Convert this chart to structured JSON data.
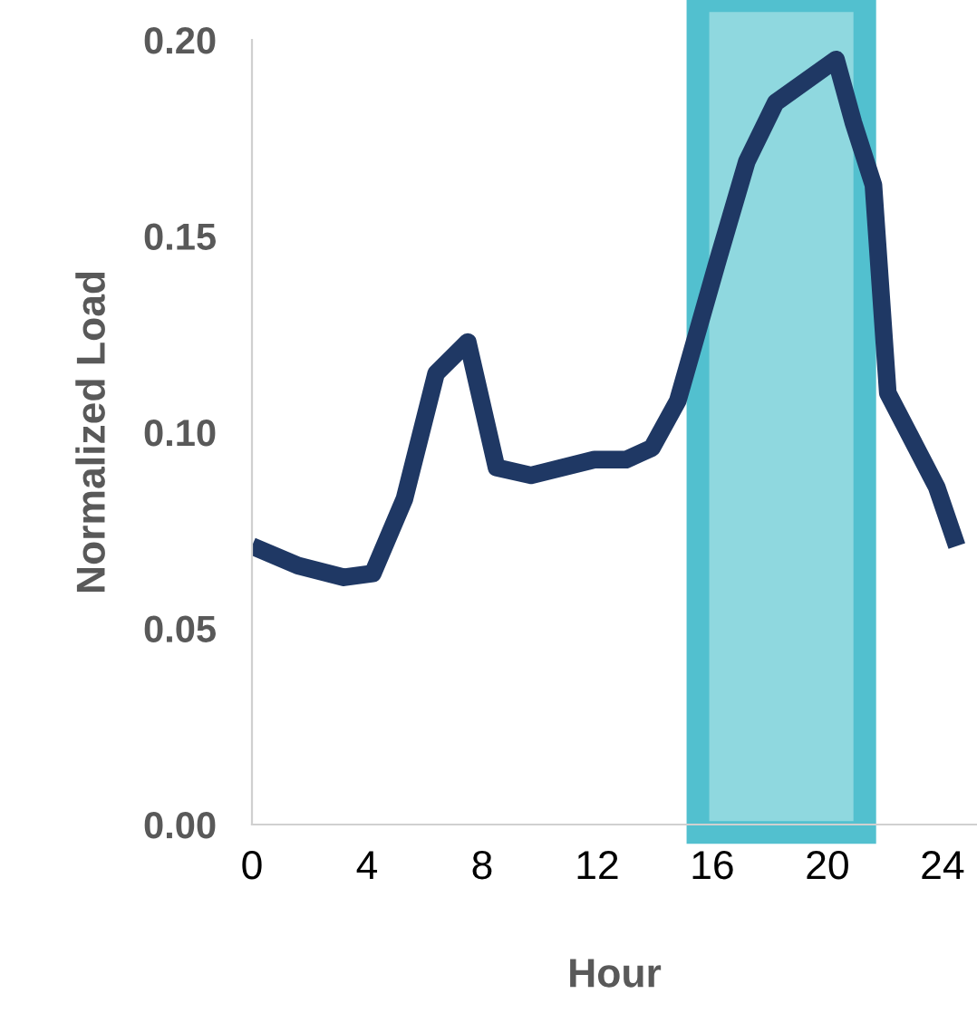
{
  "chart_data": {
    "type": "line",
    "xlabel": "Hour",
    "ylabel": "Normalized Load",
    "x": [
      0,
      1.6,
      3.2,
      4.2,
      5.3,
      6.4,
      7.5,
      8.5,
      9.7,
      11.9,
      13,
      13.9,
      14.8,
      16.2,
      17.2,
      18.2,
      20.3,
      20.9,
      21.6,
      22.1,
      23.8,
      24.5
    ],
    "series": [
      {
        "color": "#1f3864",
        "values": [
          0.071,
          0.066,
          0.063,
          0.064,
          0.083,
          0.115,
          0.123,
          0.091,
          0.089,
          0.093,
          0.093,
          0.096,
          0.108,
          0.144,
          0.169,
          0.184,
          0.195,
          0.179,
          0.163,
          0.11,
          0.086,
          0.071
        ]
      }
    ],
    "xlim": [
      0,
      25.2
    ],
    "xticks": [
      0,
      4,
      8,
      12,
      16,
      20,
      24
    ],
    "ylim": [
      0,
      0.2
    ],
    "yticks": [
      {
        "value": 0,
        "label": "0.00"
      },
      {
        "value": 0.05,
        "label": "0.05"
      },
      {
        "value": 0.1,
        "label": "0.10"
      },
      {
        "value": 0.15,
        "label": "0.15"
      },
      {
        "value": 0.2,
        "label": "0.20"
      }
    ],
    "bands": [
      {
        "axis": "x",
        "from": 15.5,
        "to": 21.3,
        "color": "#8fd8df"
      }
    ],
    "grid": false,
    "legend": false,
    "marker": "none",
    "line_style": "solid"
  }
}
